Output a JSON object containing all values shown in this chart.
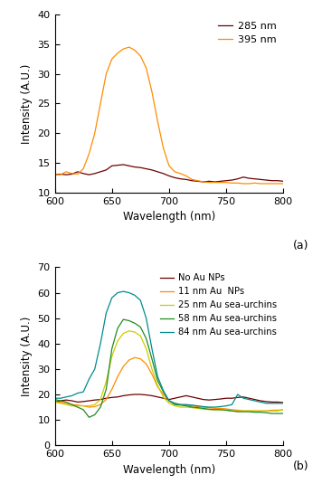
{
  "panel_a": {
    "xlabel": "Wavelength (nm)",
    "ylabel": "Intensity (A.U.)",
    "xlim": [
      600,
      800
    ],
    "ylim": [
      10,
      40
    ],
    "yticks": [
      10,
      15,
      20,
      25,
      30,
      35,
      40
    ],
    "xticks": [
      600,
      650,
      700,
      750,
      800
    ],
    "series": {
      "285nm": {
        "label": "285 nm",
        "color": "#6B0000",
        "x": [
          600,
          605,
          610,
          615,
          620,
          625,
          630,
          635,
          640,
          645,
          650,
          655,
          660,
          665,
          670,
          675,
          680,
          685,
          690,
          695,
          700,
          705,
          710,
          715,
          720,
          725,
          730,
          735,
          740,
          745,
          750,
          755,
          760,
          765,
          770,
          775,
          780,
          785,
          790,
          795,
          800
        ],
        "y": [
          13.0,
          13.1,
          13.0,
          13.1,
          13.5,
          13.2,
          13.0,
          13.2,
          13.5,
          13.8,
          14.5,
          14.6,
          14.7,
          14.5,
          14.3,
          14.2,
          14.0,
          13.8,
          13.5,
          13.2,
          12.8,
          12.5,
          12.3,
          12.2,
          12.0,
          11.9,
          11.8,
          11.9,
          11.8,
          11.9,
          12.0,
          12.1,
          12.3,
          12.6,
          12.4,
          12.3,
          12.2,
          12.1,
          12.0,
          12.0,
          11.9
        ]
      },
      "395nm": {
        "label": "395 nm",
        "color": "#FF8C00",
        "x": [
          600,
          605,
          610,
          615,
          620,
          625,
          630,
          635,
          640,
          645,
          650,
          655,
          660,
          665,
          670,
          675,
          680,
          685,
          690,
          695,
          700,
          705,
          710,
          715,
          720,
          725,
          730,
          735,
          740,
          745,
          750,
          755,
          760,
          765,
          770,
          775,
          780,
          785,
          790,
          795,
          800
        ],
        "y": [
          13.0,
          13.0,
          13.5,
          13.2,
          13.1,
          14.0,
          16.5,
          20.0,
          25.0,
          30.0,
          32.5,
          33.5,
          34.2,
          34.5,
          34.0,
          33.0,
          31.0,
          27.0,
          22.0,
          17.5,
          14.5,
          13.5,
          13.2,
          12.8,
          12.2,
          12.0,
          11.8,
          11.7,
          11.7,
          11.7,
          11.7,
          11.6,
          11.6,
          11.5,
          11.5,
          11.6,
          11.5,
          11.5,
          11.5,
          11.5,
          11.5
        ]
      }
    }
  },
  "panel_b": {
    "xlabel": "Wavelength (nm)",
    "ylabel": "Intensity (A.U.)",
    "xlim": [
      600,
      800
    ],
    "ylim": [
      0,
      70
    ],
    "yticks": [
      0,
      10,
      20,
      30,
      40,
      50,
      60,
      70
    ],
    "xticks": [
      600,
      650,
      700,
      750,
      800
    ],
    "series": {
      "no_au": {
        "label": "No Au NPs",
        "color": "#6B0000",
        "x": [
          600,
          605,
          610,
          615,
          620,
          625,
          630,
          635,
          640,
          645,
          650,
          655,
          660,
          665,
          670,
          675,
          680,
          685,
          690,
          695,
          700,
          705,
          710,
          715,
          720,
          725,
          730,
          735,
          740,
          745,
          750,
          755,
          760,
          765,
          770,
          775,
          780,
          785,
          790,
          795,
          800
        ],
        "y": [
          17.0,
          17.5,
          17.8,
          17.5,
          17.0,
          17.2,
          17.5,
          17.8,
          18.0,
          18.5,
          18.8,
          19.0,
          19.5,
          19.8,
          20.0,
          20.0,
          19.8,
          19.5,
          19.0,
          18.5,
          18.0,
          18.5,
          19.0,
          19.5,
          19.0,
          18.5,
          18.0,
          17.8,
          18.0,
          18.2,
          18.5,
          18.5,
          18.8,
          19.0,
          18.5,
          18.0,
          17.5,
          17.2,
          17.0,
          17.0,
          16.8
        ]
      },
      "11nm": {
        "label": "11 nm Au  NPs",
        "color": "#FF8C00",
        "x": [
          600,
          605,
          610,
          615,
          620,
          625,
          630,
          635,
          640,
          645,
          650,
          655,
          660,
          665,
          670,
          675,
          680,
          685,
          690,
          695,
          700,
          705,
          710,
          715,
          720,
          725,
          730,
          735,
          740,
          745,
          750,
          755,
          760,
          765,
          770,
          775,
          780,
          785,
          790,
          795,
          800
        ],
        "y": [
          17.0,
          17.0,
          16.5,
          16.0,
          15.8,
          15.5,
          15.0,
          15.2,
          16.0,
          18.0,
          22.0,
          27.0,
          31.0,
          33.5,
          34.5,
          34.0,
          32.0,
          28.0,
          23.0,
          20.0,
          17.5,
          16.5,
          16.0,
          15.8,
          15.5,
          15.2,
          15.0,
          14.8,
          14.5,
          14.5,
          14.3,
          14.0,
          13.8,
          13.5,
          13.5,
          13.5,
          13.5,
          13.5,
          13.8,
          13.8,
          14.0
        ]
      },
      "25nm": {
        "label": "25 nm Au sea-urchins",
        "color": "#CCCC00",
        "x": [
          600,
          605,
          610,
          615,
          620,
          625,
          630,
          635,
          640,
          645,
          650,
          655,
          660,
          665,
          670,
          675,
          680,
          685,
          690,
          695,
          700,
          705,
          710,
          715,
          720,
          725,
          730,
          735,
          740,
          745,
          750,
          755,
          760,
          765,
          770,
          775,
          780,
          785,
          790,
          795,
          800
        ],
        "y": [
          17.0,
          16.5,
          16.0,
          15.5,
          15.5,
          15.5,
          15.5,
          16.0,
          18.0,
          25.0,
          35.0,
          41.0,
          44.0,
          45.0,
          44.5,
          43.0,
          38.0,
          30.0,
          23.5,
          19.0,
          16.5,
          15.5,
          15.0,
          15.0,
          14.8,
          14.5,
          14.2,
          14.0,
          14.0,
          14.0,
          13.8,
          13.5,
          13.5,
          13.5,
          13.5,
          13.5,
          13.5,
          13.5,
          13.5,
          13.5,
          14.0
        ]
      },
      "58nm": {
        "label": "58 nm Au sea-urchins",
        "color": "#228B22",
        "x": [
          600,
          605,
          610,
          615,
          620,
          625,
          630,
          635,
          640,
          645,
          650,
          655,
          660,
          665,
          670,
          675,
          680,
          685,
          690,
          695,
          700,
          705,
          710,
          715,
          720,
          725,
          730,
          735,
          740,
          745,
          750,
          755,
          760,
          765,
          770,
          775,
          780,
          785,
          790,
          795,
          800
        ],
        "y": [
          18.0,
          17.5,
          17.0,
          16.0,
          15.0,
          14.0,
          11.0,
          12.0,
          15.0,
          22.0,
          38.0,
          46.0,
          49.5,
          49.0,
          48.0,
          46.5,
          42.0,
          34.0,
          25.5,
          21.0,
          17.5,
          16.0,
          15.8,
          15.5,
          15.0,
          14.8,
          14.5,
          14.2,
          14.0,
          14.0,
          13.8,
          13.5,
          13.2,
          13.2,
          13.2,
          13.0,
          13.0,
          12.8,
          12.5,
          12.5,
          12.5
        ]
      },
      "84nm": {
        "label": "84 nm Au sea-urchins",
        "color": "#008B8B",
        "x": [
          600,
          605,
          610,
          615,
          620,
          625,
          630,
          635,
          640,
          645,
          650,
          655,
          660,
          665,
          670,
          675,
          680,
          685,
          690,
          695,
          700,
          705,
          710,
          715,
          720,
          725,
          730,
          735,
          740,
          745,
          750,
          755,
          760,
          765,
          770,
          775,
          780,
          785,
          790,
          795,
          800
        ],
        "y": [
          18.5,
          18.5,
          19.0,
          19.5,
          20.5,
          21.0,
          26.0,
          30.0,
          40.0,
          52.0,
          58.0,
          60.0,
          60.5,
          60.0,
          59.0,
          57.0,
          50.0,
          38.0,
          27.0,
          21.5,
          17.5,
          16.5,
          16.0,
          16.0,
          15.8,
          15.5,
          15.2,
          15.0,
          15.0,
          15.2,
          15.5,
          16.0,
          20.0,
          18.5,
          18.0,
          17.5,
          17.0,
          16.5,
          16.5,
          16.5,
          16.5
        ]
      }
    }
  },
  "label_a": "(a)",
  "label_b": "(b)",
  "fig_width": 3.56,
  "fig_height": 5.35,
  "dpi": 100
}
